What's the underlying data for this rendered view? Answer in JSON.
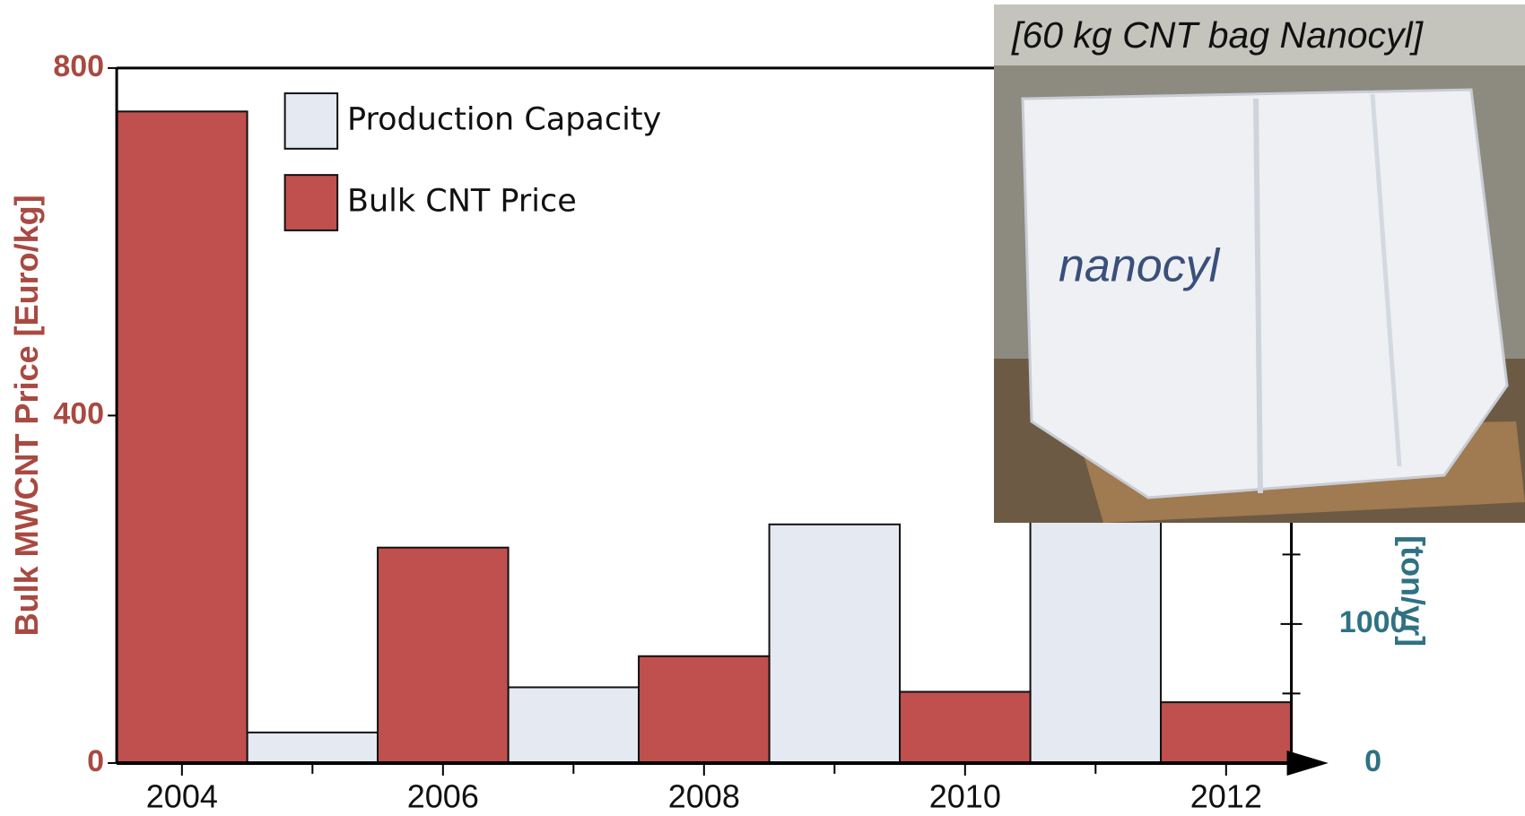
{
  "chart_data": {
    "type": "bar",
    "ylabel": "Bulk MWCNT Price [Euro/kg]",
    "y2label": "[ton/yr]",
    "annotation": "[60 kg CNT bag Nanocyl]",
    "xlim": [
      2003.5,
      2012.5
    ],
    "xticks": [
      2004,
      2006,
      2008,
      2010,
      2012
    ],
    "xminor_ticks": [
      2005,
      2007,
      2009,
      2011
    ],
    "ylim": [
      0,
      800
    ],
    "yticks": [
      0,
      400,
      800
    ],
    "y2lim": [
      0,
      5000
    ],
    "y2ticks": [
      0,
      1000
    ],
    "y2minor_ticks": [
      500,
      1500
    ],
    "series": [
      {
        "name": "Production Capacity",
        "color": "#e4e9f2",
        "axis": "y2",
        "x": [
          2005,
          2007,
          2009,
          2011
        ],
        "values": [
          220,
          545,
          1717,
          2500
        ]
      },
      {
        "name": "Bulk CNT Price",
        "color": "#c0504d",
        "x": [
          2004,
          2006,
          2008,
          2010,
          2012
        ],
        "values": [
          750,
          248,
          123,
          82,
          70
        ]
      }
    ]
  }
}
